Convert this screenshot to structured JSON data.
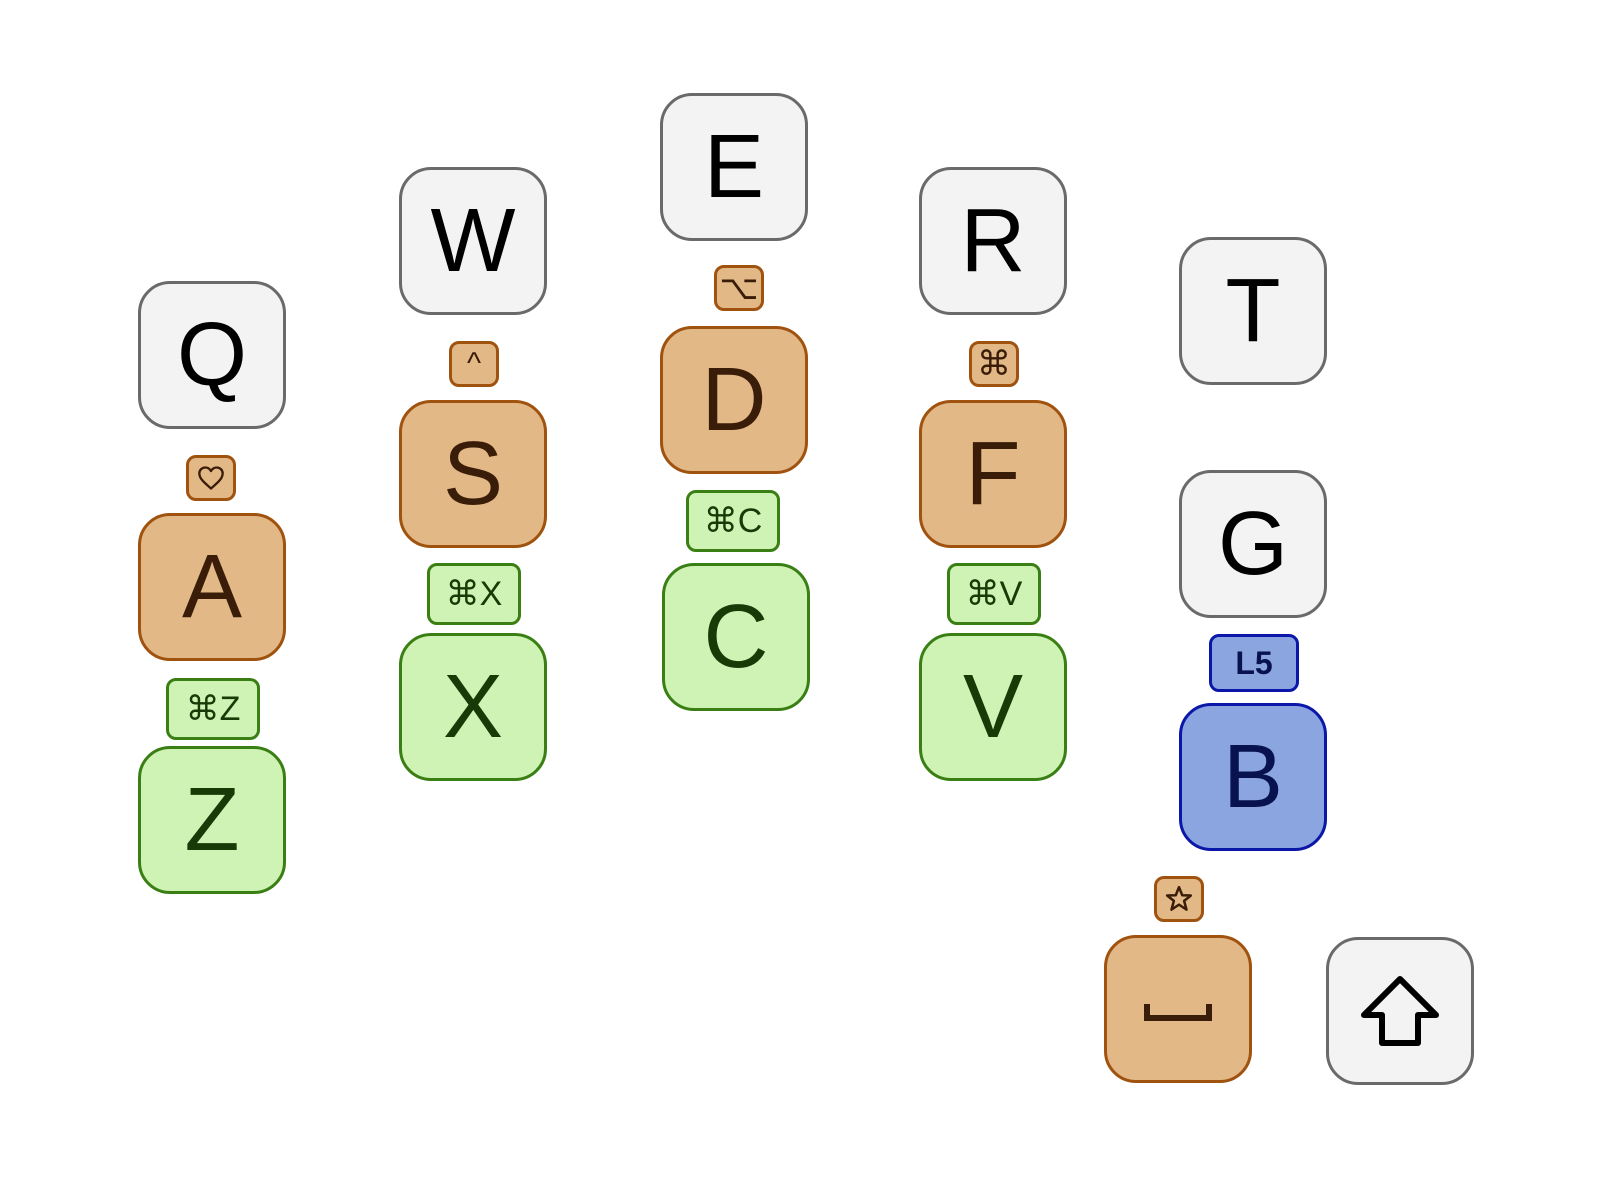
{
  "colors": {
    "base_fill": "#f3f3f3",
    "base_border": "#6a6a6a",
    "modifier_fill": "#e2b886",
    "modifier_border": "#a0520f",
    "shortcut_fill": "#cff2b5",
    "shortcut_border": "#3a7f14",
    "layer_fill": "#8aa5e0",
    "layer_border": "#0a17a8"
  },
  "keys": {
    "q": "Q",
    "w": "W",
    "e": "E",
    "r": "R",
    "t": "T",
    "a": "A",
    "s": "S",
    "d": "D",
    "f": "F",
    "g": "G",
    "z": "Z",
    "x": "X",
    "c": "C",
    "v": "V",
    "b": "B",
    "space": "␣",
    "shift_icon": "shift-icon"
  },
  "combos": {
    "qa_icon": "heart-icon",
    "ws": "^",
    "ed": "⌥",
    "rf": "⌘",
    "az": "⌘Z",
    "sx": "⌘X",
    "dc": "⌘C",
    "fv": "⌘V",
    "gb": "L5",
    "b_space_icon": "star-icon"
  }
}
